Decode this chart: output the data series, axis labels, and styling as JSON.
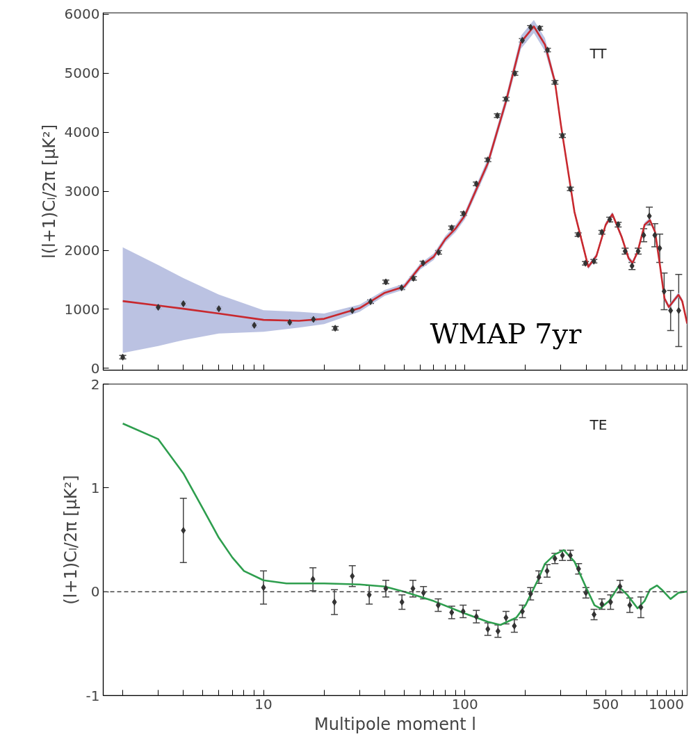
{
  "chart_data": [
    {
      "type": "scatter",
      "ylabel": "l(l+1)Cₗ/2π [μK²]",
      "annotations": [
        "TT",
        "WMAP 7yr"
      ],
      "xlim": [
        1.6,
        1270
      ],
      "ylim": [
        -30,
        6020
      ],
      "log": "x",
      "grid": false,
      "tick_labels": "y",
      "xticks": [
        {
          "value": 2,
          "label": null
        },
        {
          "value": 3,
          "label": null
        },
        {
          "value": 4,
          "label": null
        },
        {
          "value": 5,
          "label": null
        },
        {
          "value": 6,
          "label": null
        },
        {
          "value": 7,
          "label": null
        },
        {
          "value": 8,
          "label": null
        },
        {
          "value": 9,
          "label": null
        },
        10,
        {
          "value": 20,
          "label": null
        },
        {
          "value": 30,
          "label": null
        },
        {
          "value": 40,
          "label": null
        },
        {
          "value": 50,
          "label": null
        },
        {
          "value": 60,
          "label": null
        },
        {
          "value": 70,
          "label": null
        },
        {
          "value": 80,
          "label": null
        },
        {
          "value": 90,
          "label": null
        },
        100,
        {
          "value": 200,
          "label": null
        },
        {
          "value": 300,
          "label": null
        },
        {
          "value": 400,
          "label": null
        },
        500,
        {
          "value": 600,
          "label": null
        },
        {
          "value": 700,
          "label": null
        },
        {
          "value": 800,
          "label": null
        },
        {
          "value": 900,
          "label": null
        },
        1000,
        {
          "value": 1100,
          "label": null
        },
        {
          "value": 1200,
          "label": null
        }
      ],
      "yticks": [
        0,
        1000,
        2000,
        3000,
        4000,
        5000,
        6000
      ],
      "series": [
        {
          "type": "line",
          "color": "#c8282e",
          "line_style": "solid",
          "x": [
            2,
            3,
            4,
            6,
            10,
            15,
            20,
            30,
            40,
            50,
            60,
            70,
            80,
            90,
            100,
            130,
            160,
            190,
            220,
            250,
            280,
            300,
            350,
            410,
            450,
            500,
            540,
            600,
            650,
            680,
            720,
            780,
            830,
            880,
            930,
            980,
            1030,
            1100,
            1150,
            1200,
            1270
          ],
          "values": [
            1140,
            1065,
            1010,
            930,
            822,
            805,
            840,
            1020,
            1280,
            1385,
            1725,
            1890,
            2190,
            2370,
            2590,
            3475,
            4520,
            5525,
            5790,
            5480,
            4850,
            4115,
            2650,
            1720,
            1905,
            2430,
            2610,
            2230,
            1865,
            1785,
            1970,
            2430,
            2510,
            2310,
            1750,
            1185,
            1040,
            1165,
            1245,
            1140,
            760
          ],
          "upper": [
            2050,
            1750,
            1530,
            1250,
            985,
            960,
            930,
            1080,
            1330,
            1435,
            1775,
            1945,
            2245,
            2430,
            2655,
            3555,
            4610,
            5635,
            5900,
            5590,
            4920,
            4160,
            2690,
            1760,
            1945,
            2470,
            2650,
            2270,
            1905,
            1825,
            2010,
            2470,
            2550,
            2350,
            1790,
            1225,
            1080,
            1205,
            1285,
            1180,
            800
          ],
          "lower": [
            260,
            380,
            480,
            590,
            620,
            690,
            750,
            960,
            1230,
            1335,
            1675,
            1835,
            2135,
            2310,
            2525,
            3395,
            4430,
            5415,
            5680,
            5370,
            4780,
            4070,
            2610,
            1680,
            1865,
            2390,
            2570,
            2190,
            1825,
            1745,
            1930,
            2390,
            2470,
            2270,
            1710,
            1145,
            1000,
            1125,
            1205,
            1100,
            720
          ]
        },
        {
          "marker": "diamond",
          "color": "#333333",
          "x": [
            2,
            3,
            4,
            6,
            9,
            13.5,
            17.7,
            22.7,
            27.6,
            34,
            40.5,
            48.5,
            55.5,
            62,
            74,
            86,
            98.5,
            114,
            130,
            145,
            160,
            177,
            193,
            212,
            235,
            257,
            280,
            305,
            334,
            365,
            397,
            437,
            479,
            524,
            577,
            625,
            676,
            725,
            773,
            824,
            877,
            928,
            976,
            1051,
            1153
          ],
          "values": [
            190,
            1035,
            1095,
            1010,
            730,
            780,
            830,
            680,
            980,
            1130,
            1465,
            1365,
            1525,
            1785,
            1965,
            2380,
            2620,
            3125,
            3530,
            4280,
            4560,
            4995,
            5555,
            5775,
            5760,
            5390,
            4845,
            3940,
            3040,
            2265,
            1780,
            1815,
            2305,
            2520,
            2435,
            1985,
            1735,
            1985,
            2255,
            2580,
            2255,
            2035,
            1305,
            980,
            980
          ],
          "errors": [
            30,
            30,
            30,
            30,
            30,
            30,
            30,
            30,
            30,
            30,
            30,
            30,
            30,
            30,
            30,
            30,
            30,
            30,
            30,
            30,
            30,
            30,
            30,
            30,
            30,
            30,
            30,
            30,
            30,
            30,
            30,
            30,
            30,
            40,
            40,
            50,
            60,
            50,
            110,
            150,
            195,
            240,
            310,
            340,
            610
          ]
        }
      ]
    },
    {
      "type": "scatter",
      "xlabel": "Multipole moment l",
      "ylabel": "(l+1)Cₗ/2π [μK²]",
      "annotations": [
        "TE"
      ],
      "xlim": [
        1.6,
        1270
      ],
      "ylim": [
        -1,
        2
      ],
      "log": "x",
      "grid": false,
      "xticks": [
        {
          "value": 2,
          "label": null
        },
        {
          "value": 3,
          "label": null
        },
        {
          "value": 4,
          "label": null
        },
        {
          "value": 5,
          "label": null
        },
        {
          "value": 6,
          "label": null
        },
        {
          "value": 7,
          "label": null
        },
        {
          "value": 8,
          "label": null
        },
        {
          "value": 9,
          "label": null
        },
        10,
        {
          "value": 20,
          "label": null
        },
        {
          "value": 30,
          "label": null
        },
        {
          "value": 40,
          "label": null
        },
        {
          "value": 50,
          "label": null
        },
        {
          "value": 60,
          "label": null
        },
        {
          "value": 70,
          "label": null
        },
        {
          "value": 80,
          "label": null
        },
        {
          "value": 90,
          "label": null
        },
        100,
        {
          "value": 200,
          "label": null
        },
        {
          "value": 300,
          "label": null
        },
        {
          "value": 400,
          "label": null
        },
        500,
        {
          "value": 600,
          "label": null
        },
        {
          "value": 700,
          "label": null
        },
        {
          "value": 800,
          "label": null
        },
        {
          "value": 900,
          "label": null
        },
        1000,
        {
          "value": 1100,
          "label": null
        },
        {
          "value": 1200,
          "label": null
        }
      ],
      "yticks": [
        -1,
        0,
        1,
        2
      ],
      "ref_lines": [
        {
          "axis": "y",
          "value": 0,
          "color": "#444444",
          "line_style": "dashed"
        }
      ],
      "series": [
        {
          "type": "line",
          "color": "#2e9e4e",
          "line_style": "solid",
          "x": [
            2,
            3,
            4,
            5,
            6,
            7,
            8,
            10,
            13,
            20,
            30,
            40,
            50,
            70,
            100,
            130,
            150,
            180,
            200,
            230,
            250,
            280,
            310,
            350,
            400,
            440,
            470,
            520,
            580,
            640,
            720,
            780,
            830,
            900,
            950,
            1050,
            1150,
            1250,
            1270
          ],
          "values": [
            1.62,
            1.47,
            1.14,
            0.8,
            0.52,
            0.33,
            0.2,
            0.11,
            0.08,
            0.08,
            0.07,
            0.05,
            0.0,
            -0.09,
            -0.21,
            -0.29,
            -0.32,
            -0.25,
            -0.13,
            0.11,
            0.27,
            0.36,
            0.4,
            0.29,
            0.04,
            -0.13,
            -0.16,
            -0.09,
            0.05,
            -0.03,
            -0.16,
            -0.09,
            0.02,
            0.06,
            0.02,
            -0.07,
            -0.01,
            0.0,
            0.0
          ]
        },
        {
          "marker": "diamond",
          "color": "#333333",
          "x": [
            4,
            10,
            17.6,
            22.5,
            27.6,
            33.5,
            40.5,
            48.7,
            55.2,
            62.3,
            73.7,
            86,
            98,
            114,
            130,
            146,
            160,
            176,
            193,
            212,
            233,
            256,
            280,
            305,
            334,
            367,
            399,
            438,
            479,
            529,
            589,
            659,
            748
          ],
          "values": [
            0.59,
            0.04,
            0.12,
            -0.1,
            0.15,
            -0.03,
            0.03,
            -0.1,
            0.03,
            -0.01,
            -0.13,
            -0.2,
            -0.19,
            -0.24,
            -0.36,
            -0.38,
            -0.25,
            -0.33,
            -0.19,
            -0.02,
            0.14,
            0.2,
            0.32,
            0.35,
            0.35,
            0.22,
            -0.01,
            -0.22,
            -0.12,
            -0.1,
            0.05,
            -0.13,
            -0.15
          ],
          "errors": [
            0.31,
            0.16,
            0.11,
            0.12,
            0.1,
            0.09,
            0.08,
            0.07,
            0.08,
            0.06,
            0.06,
            0.06,
            0.06,
            0.06,
            0.06,
            0.06,
            0.06,
            0.06,
            0.06,
            0.06,
            0.06,
            0.06,
            0.05,
            0.05,
            0.05,
            0.05,
            0.05,
            0.05,
            0.05,
            0.07,
            0.06,
            0.07,
            0.1
          ]
        }
      ]
    }
  ]
}
